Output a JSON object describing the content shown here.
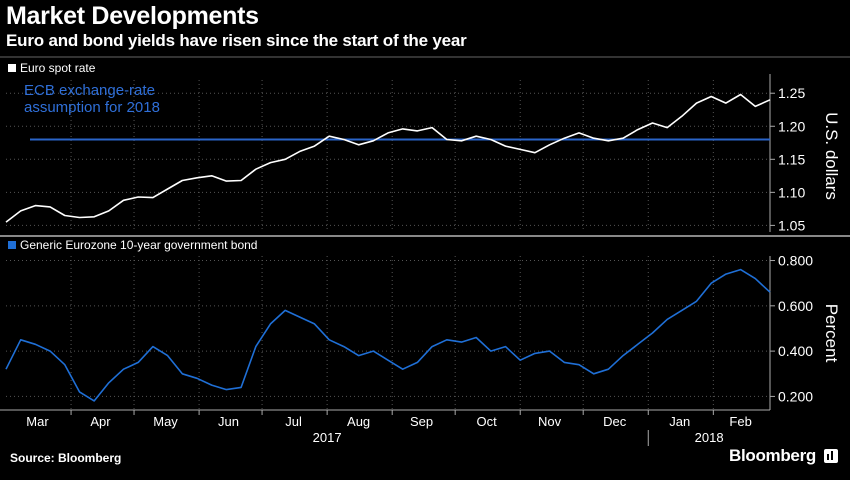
{
  "header": {
    "title": "Market Developments",
    "subtitle": "Euro and bond yields have risen since the start of the year"
  },
  "footer": {
    "source": "Source: Bloomberg",
    "brand": "Bloomberg"
  },
  "colors": {
    "background": "#000000",
    "line_euro": "#ffffff",
    "line_bond": "#1f6fd6",
    "ecb_line": "#2a64c8",
    "ecb_label": "#2f6fd8",
    "grid": "#555555"
  },
  "chart_data": [
    {
      "type": "line",
      "legend": "Euro spot rate",
      "annotation": "ECB exchange-rate assumption for 2018",
      "ylabel": "U.S. dollars",
      "ylim": [
        1.04,
        1.27
      ],
      "yticks": [
        "1.05",
        "1.10",
        "1.15",
        "1.20",
        "1.25"
      ],
      "reference_line": 1.18,
      "x_start": "2017-03-01",
      "x_end": "2018-02-28",
      "series": [
        {
          "x": [
            "2017-03-01",
            "2017-03-08",
            "2017-03-15",
            "2017-03-22",
            "2017-03-29",
            "2017-04-05",
            "2017-04-12",
            "2017-04-19",
            "2017-04-26",
            "2017-05-03",
            "2017-05-10",
            "2017-05-17",
            "2017-05-24",
            "2017-05-31",
            "2017-06-07",
            "2017-06-14",
            "2017-06-21",
            "2017-06-28",
            "2017-07-05",
            "2017-07-12",
            "2017-07-19",
            "2017-07-26",
            "2017-08-02",
            "2017-08-09",
            "2017-08-16",
            "2017-08-23",
            "2017-08-30",
            "2017-09-06",
            "2017-09-13",
            "2017-09-20",
            "2017-09-27",
            "2017-10-04",
            "2017-10-11",
            "2017-10-18",
            "2017-10-25",
            "2017-11-01",
            "2017-11-08",
            "2017-11-15",
            "2017-11-22",
            "2017-11-29",
            "2017-12-06",
            "2017-12-13",
            "2017-12-20",
            "2017-12-27",
            "2018-01-03",
            "2018-01-10",
            "2018-01-17",
            "2018-01-24",
            "2018-01-31",
            "2018-02-07",
            "2018-02-14",
            "2018-02-21",
            "2018-02-28"
          ],
          "values": [
            1.055,
            1.072,
            1.08,
            1.078,
            1.065,
            1.062,
            1.063,
            1.072,
            1.088,
            1.093,
            1.092,
            1.105,
            1.118,
            1.122,
            1.125,
            1.117,
            1.118,
            1.135,
            1.145,
            1.15,
            1.162,
            1.17,
            1.185,
            1.18,
            1.172,
            1.178,
            1.19,
            1.196,
            1.193,
            1.198,
            1.18,
            1.178,
            1.185,
            1.18,
            1.17,
            1.165,
            1.16,
            1.172,
            1.182,
            1.19,
            1.182,
            1.178,
            1.182,
            1.195,
            1.205,
            1.198,
            1.215,
            1.235,
            1.245,
            1.235,
            1.248,
            1.23,
            1.24
          ]
        }
      ]
    },
    {
      "type": "line",
      "legend": "Generic Eurozone 10-year government bond",
      "ylabel": "Percent",
      "ylim": [
        0.14,
        0.82
      ],
      "yticks": [
        "0.200",
        "0.400",
        "0.600",
        "0.800"
      ],
      "xticks": [
        "Mar",
        "Apr",
        "May",
        "Jun",
        "Jul",
        "Aug",
        "Sep",
        "Oct",
        "Nov",
        "Dec",
        "Jan",
        "Feb"
      ],
      "year_labels": [
        "2017",
        "2018"
      ],
      "x_start": "2017-03-01",
      "x_end": "2018-02-28",
      "series": [
        {
          "x": [
            "2017-03-01",
            "2017-03-08",
            "2017-03-15",
            "2017-03-22",
            "2017-03-29",
            "2017-04-05",
            "2017-04-12",
            "2017-04-19",
            "2017-04-26",
            "2017-05-03",
            "2017-05-10",
            "2017-05-17",
            "2017-05-24",
            "2017-05-31",
            "2017-06-07",
            "2017-06-14",
            "2017-06-21",
            "2017-06-28",
            "2017-07-05",
            "2017-07-12",
            "2017-07-19",
            "2017-07-26",
            "2017-08-02",
            "2017-08-09",
            "2017-08-16",
            "2017-08-23",
            "2017-08-30",
            "2017-09-06",
            "2017-09-13",
            "2017-09-20",
            "2017-09-27",
            "2017-10-04",
            "2017-10-11",
            "2017-10-18",
            "2017-10-25",
            "2017-11-01",
            "2017-11-08",
            "2017-11-15",
            "2017-11-22",
            "2017-11-29",
            "2017-12-06",
            "2017-12-13",
            "2017-12-20",
            "2017-12-27",
            "2018-01-03",
            "2018-01-10",
            "2018-01-17",
            "2018-01-24",
            "2018-01-31",
            "2018-02-07",
            "2018-02-14",
            "2018-02-21",
            "2018-02-28"
          ],
          "values": [
            0.32,
            0.45,
            0.43,
            0.4,
            0.34,
            0.22,
            0.18,
            0.26,
            0.32,
            0.35,
            0.42,
            0.38,
            0.3,
            0.28,
            0.25,
            0.23,
            0.24,
            0.42,
            0.52,
            0.58,
            0.55,
            0.52,
            0.45,
            0.42,
            0.38,
            0.4,
            0.36,
            0.32,
            0.35,
            0.42,
            0.45,
            0.44,
            0.46,
            0.4,
            0.42,
            0.36,
            0.39,
            0.4,
            0.35,
            0.34,
            0.3,
            0.32,
            0.38,
            0.43,
            0.48,
            0.54,
            0.58,
            0.62,
            0.7,
            0.74,
            0.76,
            0.72,
            0.66
          ]
        }
      ]
    }
  ]
}
